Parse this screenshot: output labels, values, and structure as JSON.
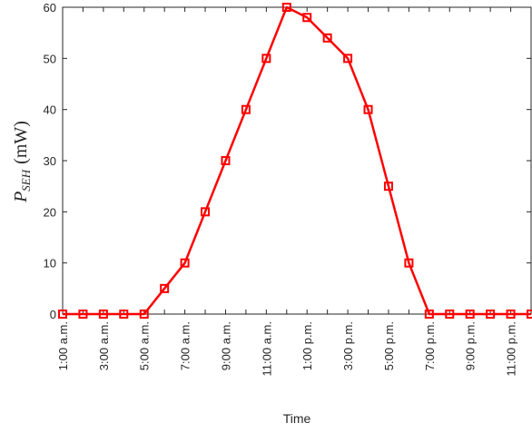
{
  "chart_data": {
    "type": "line",
    "x_tick_labels": [
      "1:00 a.m.",
      "3:00 a.m.",
      "5:00 a.m.",
      "7:00 a.m.",
      "9:00 a.m.",
      "11:00 a.m.",
      "1:00 p.m.",
      "3:00 p.m.",
      "5:00 p.m.",
      "7:00 p.m.",
      "9:00 p.m.",
      "11:00 p.m."
    ],
    "x": [
      1,
      2,
      3,
      4,
      5,
      6,
      7,
      8,
      9,
      10,
      11,
      12,
      13,
      14,
      15,
      16,
      17,
      18,
      19,
      20,
      21,
      22,
      23,
      24
    ],
    "values": [
      0,
      0,
      0,
      0,
      0,
      5,
      10,
      20,
      30,
      40,
      50,
      60,
      58,
      54,
      50,
      40,
      25,
      10,
      0,
      0,
      0,
      0,
      0,
      0
    ],
    "xlabel": "Time",
    "ylabel": {
      "symbol": "P",
      "subscript": "SEH",
      "unit": "(mW)"
    },
    "ylim": [
      0,
      60
    ],
    "yticks": [
      0,
      10,
      20,
      30,
      40,
      50,
      60
    ],
    "xlim": [
      1,
      24
    ],
    "line_color": "#ff0000",
    "marker": "square",
    "grid": false
  }
}
